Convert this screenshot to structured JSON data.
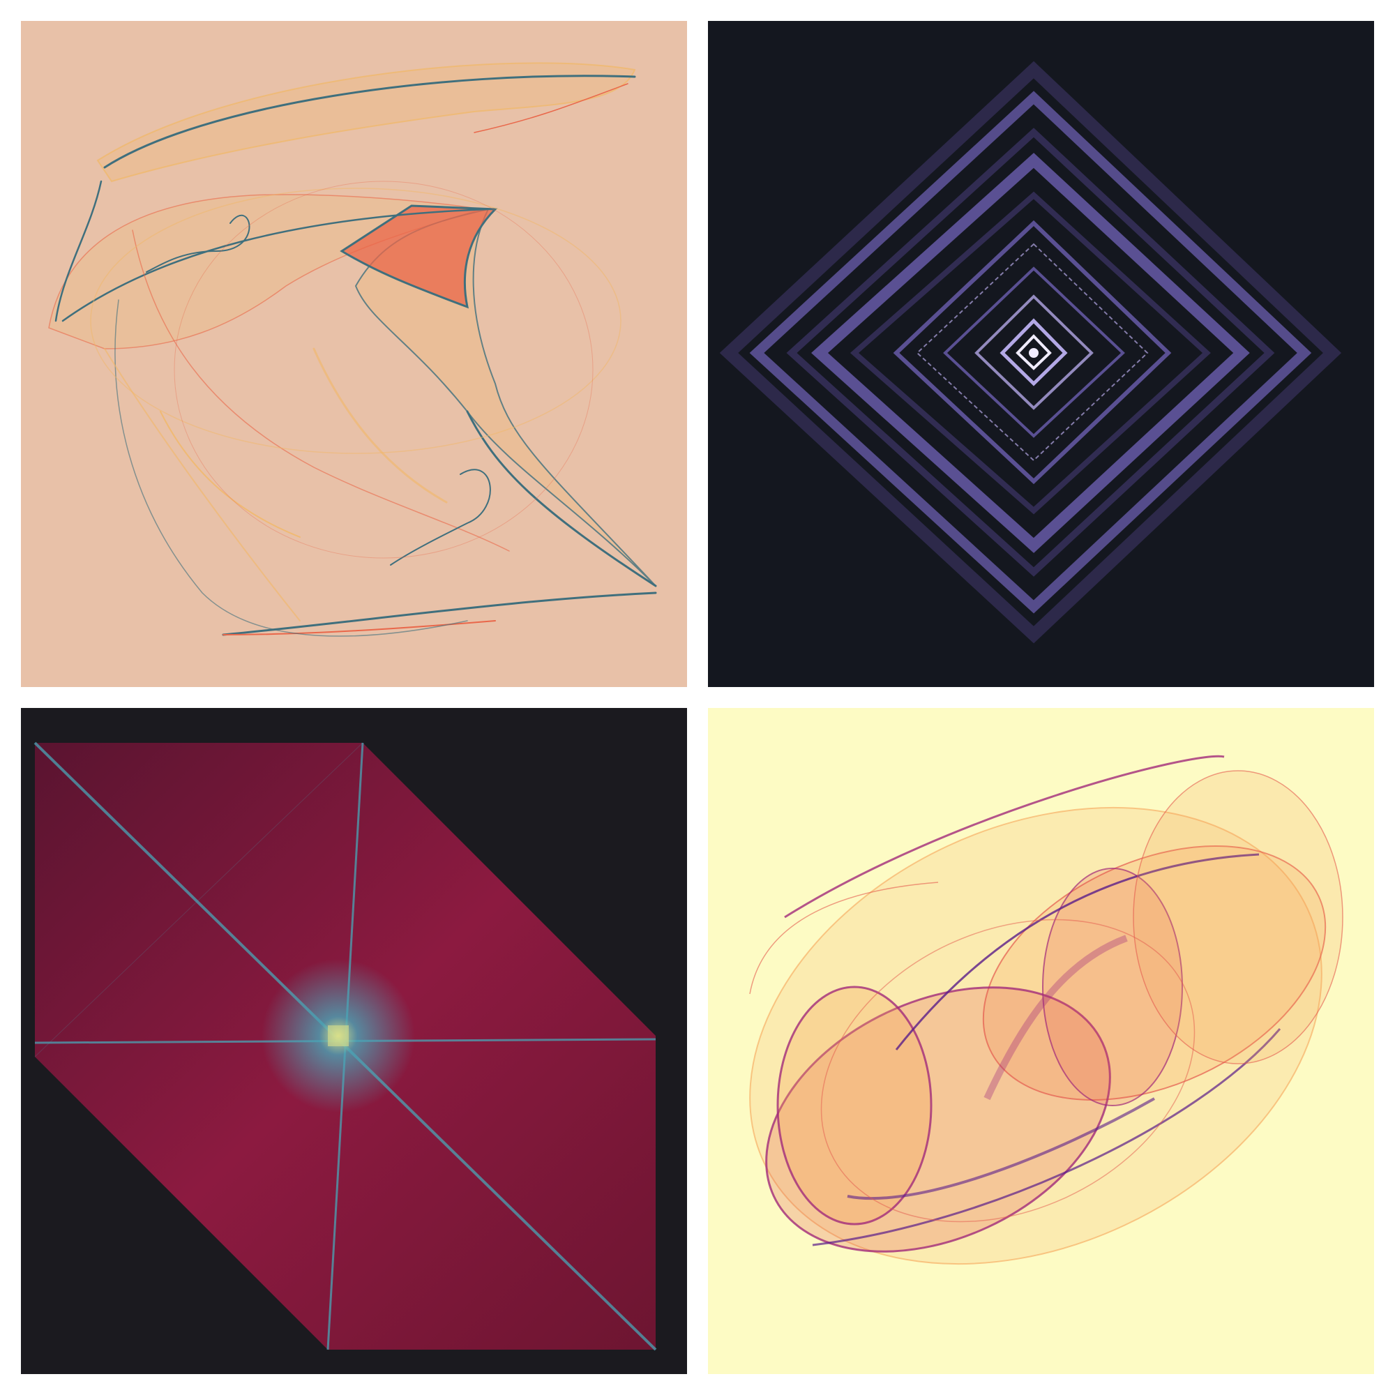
{
  "panels": [
    {
      "id": "attractor-peach",
      "background": "#e8c1a8",
      "palette": [
        "#f1b867",
        "#e9674a",
        "#3f6f7d"
      ],
      "icon": "strange-attractor-image"
    },
    {
      "id": "attractor-diamond",
      "background": "#14171f",
      "palette": [
        "#3d3668",
        "#6b5fb0",
        "#b3a8e6",
        "#f0ecff"
      ],
      "icon": "diamond-attractor-image"
    },
    {
      "id": "attractor-cube",
      "background": "#1b1a1f",
      "palette": [
        "#6d1531",
        "#a01a45",
        "#4aa4b6",
        "#d9e08a"
      ],
      "icon": "cube-attractor-image"
    },
    {
      "id": "attractor-cylinder",
      "background": "#fdfbc4",
      "palette": [
        "#f6a55a",
        "#e45a4e",
        "#a12a7a",
        "#5a1d8a"
      ],
      "icon": "cylinder-attractor-image"
    }
  ]
}
